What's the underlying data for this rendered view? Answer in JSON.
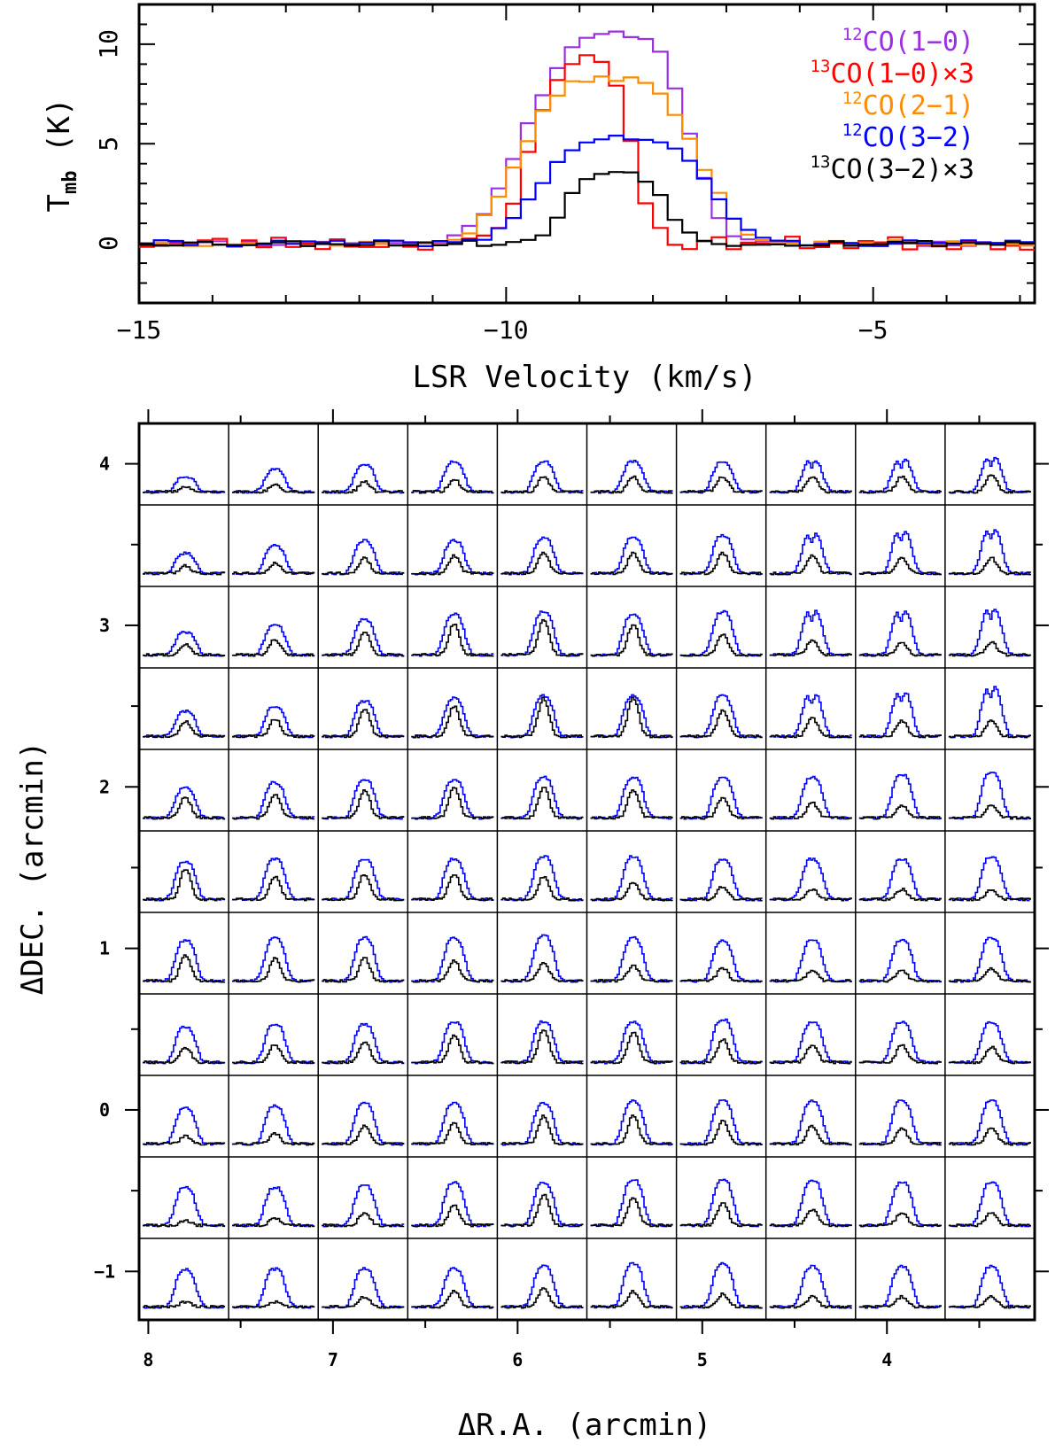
{
  "chart_data": [
    {
      "type": "line",
      "style": "histogram",
      "xlabel": "LSR Velocity (km/s)",
      "ylabel": "T",
      "ylabel_sub": "mb",
      "ylabel_unit": "(K)",
      "xlim": [
        -15,
        -2.8
      ],
      "ylim": [
        -3,
        12
      ],
      "x_tick_labels": [
        "−15",
        "−10",
        "−5"
      ],
      "x_ticks": [
        -15,
        -10,
        -5
      ],
      "y_tick_labels": [
        "0",
        "5",
        "10"
      ],
      "y_ticks": [
        0,
        5,
        10
      ],
      "series": [
        {
          "name": "CO(1−0)",
          "iso": "12",
          "suffix": "",
          "color": "#9b30e0",
          "peak": 10.5,
          "center": -8.4,
          "width": 2.6,
          "skew": 0.2,
          "noise": 0.15,
          "seed": 11
        },
        {
          "name": "CO(1−0)",
          "iso": "13",
          "suffix": "×3",
          "color": "#ff0000",
          "peak": 9.2,
          "center": -8.9,
          "width": 1.6,
          "skew": 0.1,
          "noise": 0.35,
          "seed": 23
        },
        {
          "name": "CO(2−1)",
          "iso": "12",
          "suffix": "",
          "color": "#ff8c00",
          "peak": 8.3,
          "center": -8.6,
          "width": 2.8,
          "skew": 0.0,
          "noise": 0.15,
          "seed": 37
        },
        {
          "name": "CO(3−2)",
          "iso": "12",
          "suffix": "",
          "color": "#0000ff",
          "peak": 5.3,
          "center": -8.4,
          "width": 2.7,
          "skew": 0.0,
          "noise": 0.15,
          "seed": 41
        },
        {
          "name": "CO(3−2)",
          "iso": "13",
          "suffix": "×3",
          "color": "#000000",
          "peak": 3.6,
          "center": -8.5,
          "width": 1.6,
          "skew": 0.0,
          "noise": 0.15,
          "seed": 53
        }
      ]
    },
    {
      "type": "line",
      "style": "spectral-grid",
      "xlabel": "ΔR.A. (arcmin)",
      "ylabel": "ΔDEC. (arcmin)",
      "xlim": [
        8.05,
        3.2
      ],
      "ylim": [
        -1.3,
        4.25
      ],
      "x_tick_labels": [
        "8",
        "7",
        "6",
        "5",
        "4"
      ],
      "x_ticks": [
        8,
        7,
        6,
        5,
        4
      ],
      "y_tick_labels": [
        "−1",
        "0",
        "1",
        "2",
        "3",
        "4"
      ],
      "y_ticks": [
        -1,
        0,
        1,
        2,
        3,
        4
      ],
      "columns": 10,
      "rows": 11,
      "series": [
        {
          "name": "12CO(3−2)",
          "color": "#0000ff"
        },
        {
          "name": "13CO(3−2)×3",
          "color": "#000000"
        }
      ],
      "peaks_12co": [
        [
          0.3,
          0.45,
          0.55,
          0.6,
          0.6,
          0.6,
          0.6,
          0.65,
          0.65,
          0.7
        ],
        [
          0.4,
          0.55,
          0.65,
          0.65,
          0.7,
          0.7,
          0.75,
          0.8,
          0.85,
          0.9
        ],
        [
          0.45,
          0.6,
          0.7,
          0.8,
          0.85,
          0.8,
          0.85,
          0.9,
          0.9,
          0.95
        ],
        [
          0.5,
          0.6,
          0.7,
          0.75,
          0.8,
          0.8,
          0.8,
          0.85,
          0.9,
          1.0
        ],
        [
          0.6,
          0.7,
          0.75,
          0.75,
          0.8,
          0.8,
          0.8,
          0.8,
          0.85,
          0.9
        ],
        [
          0.75,
          0.8,
          0.8,
          0.8,
          0.85,
          0.85,
          0.8,
          0.8,
          0.8,
          0.85
        ],
        [
          0.8,
          0.85,
          0.85,
          0.85,
          0.9,
          0.85,
          0.8,
          0.8,
          0.8,
          0.85
        ],
        [
          0.7,
          0.75,
          0.75,
          0.8,
          0.8,
          0.8,
          0.85,
          0.8,
          0.8,
          0.8
        ],
        [
          0.7,
          0.75,
          0.8,
          0.8,
          0.8,
          0.85,
          0.85,
          0.85,
          0.85,
          0.85
        ],
        [
          0.75,
          0.75,
          0.8,
          0.85,
          0.85,
          0.9,
          0.9,
          0.9,
          0.85,
          0.85
        ],
        [
          0.75,
          0.75,
          0.75,
          0.75,
          0.8,
          0.85,
          0.85,
          0.8,
          0.8,
          0.8
        ]
      ],
      "peaks_13co": [
        [
          0.1,
          0.15,
          0.2,
          0.25,
          0.3,
          0.3,
          0.3,
          0.3,
          0.3,
          0.35
        ],
        [
          0.15,
          0.2,
          0.3,
          0.35,
          0.4,
          0.4,
          0.4,
          0.35,
          0.3,
          0.3
        ],
        [
          0.2,
          0.3,
          0.45,
          0.6,
          0.7,
          0.6,
          0.4,
          0.3,
          0.25,
          0.25
        ],
        [
          0.3,
          0.35,
          0.55,
          0.6,
          0.75,
          0.75,
          0.5,
          0.35,
          0.3,
          0.3
        ],
        [
          0.4,
          0.45,
          0.55,
          0.6,
          0.6,
          0.55,
          0.4,
          0.3,
          0.25,
          0.25
        ],
        [
          0.6,
          0.45,
          0.5,
          0.5,
          0.45,
          0.35,
          0.25,
          0.2,
          0.2,
          0.2
        ],
        [
          0.5,
          0.45,
          0.45,
          0.4,
          0.35,
          0.3,
          0.25,
          0.2,
          0.2,
          0.25
        ],
        [
          0.3,
          0.35,
          0.4,
          0.55,
          0.65,
          0.6,
          0.45,
          0.35,
          0.35,
          0.3
        ],
        [
          0.15,
          0.2,
          0.35,
          0.4,
          0.55,
          0.55,
          0.45,
          0.35,
          0.3,
          0.3
        ],
        [
          0.1,
          0.15,
          0.25,
          0.4,
          0.6,
          0.55,
          0.45,
          0.3,
          0.25,
          0.25
        ],
        [
          0.1,
          0.1,
          0.2,
          0.3,
          0.35,
          0.3,
          0.25,
          0.2,
          0.2,
          0.2
        ]
      ]
    }
  ]
}
